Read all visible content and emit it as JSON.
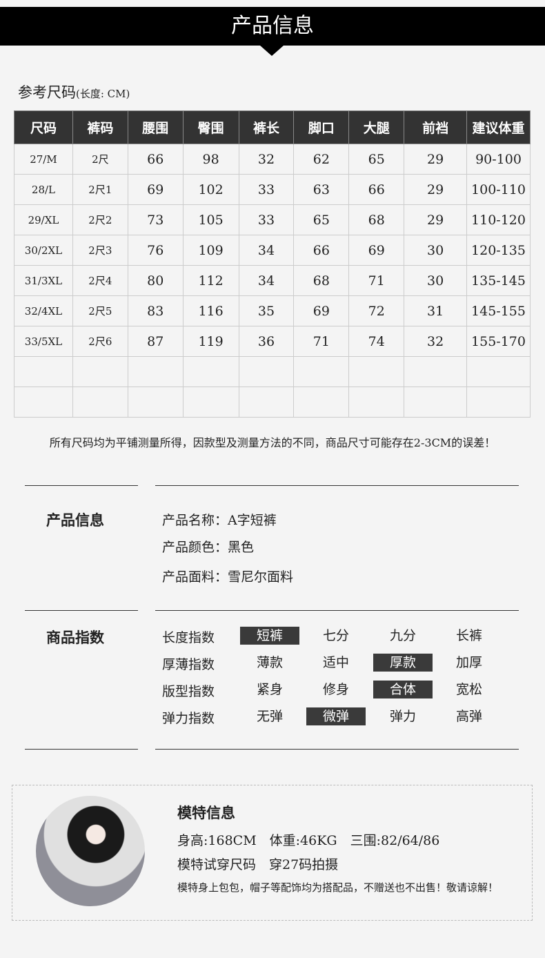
{
  "banner": {
    "title": "产品信息"
  },
  "size_chart": {
    "title": "参考尺码",
    "unit": "(长度: CM)",
    "headers": [
      "尺码",
      "裤码",
      "腰围",
      "臀围",
      "裤长",
      "脚口",
      "大腿",
      "前裆",
      "建议体重"
    ],
    "rows": [
      [
        "27/M",
        "2尺",
        "66",
        "98",
        "32",
        "62",
        "65",
        "29",
        "90-100"
      ],
      [
        "28/L",
        "2尺1",
        "69",
        "102",
        "33",
        "63",
        "66",
        "29",
        "100-110"
      ],
      [
        "29/XL",
        "2尺2",
        "73",
        "105",
        "33",
        "65",
        "68",
        "29",
        "110-120"
      ],
      [
        "30/2XL",
        "2尺3",
        "76",
        "109",
        "34",
        "66",
        "69",
        "30",
        "120-135"
      ],
      [
        "31/3XL",
        "2尺4",
        "80",
        "112",
        "34",
        "68",
        "71",
        "30",
        "135-145"
      ],
      [
        "32/4XL",
        "2尺5",
        "83",
        "116",
        "35",
        "69",
        "72",
        "31",
        "145-155"
      ],
      [
        "33/5XL",
        "2尺6",
        "87",
        "119",
        "36",
        "71",
        "74",
        "32",
        "155-170"
      ],
      [
        "",
        "",
        "",
        "",
        "",
        "",
        "",
        "",
        ""
      ],
      [
        "",
        "",
        "",
        "",
        "",
        "",
        "",
        "",
        ""
      ]
    ]
  },
  "note": "所有尺码均为平铺测量所得，因款型及测量方法的不同，商品尺寸可能存在2-3CM的误差！",
  "product_info": {
    "heading": "产品信息",
    "fields": [
      "产品名称：A字短裤",
      "产品颜色：黑色",
      "产品面料：雪尼尔面料"
    ]
  },
  "indices": {
    "heading": "商品指数",
    "rows": [
      {
        "label": "长度指数",
        "options": [
          "短裤",
          "七分",
          "九分",
          "长裤"
        ],
        "selected": 0
      },
      {
        "label": "厚薄指数",
        "options": [
          "薄款",
          "适中",
          "厚款",
          "加厚"
        ],
        "selected": 2
      },
      {
        "label": "版型指数",
        "options": [
          "紧身",
          "修身",
          "合体",
          "宽松"
        ],
        "selected": 2
      },
      {
        "label": "弹力指数",
        "options": [
          "无弹",
          "微弹",
          "弹力",
          "高弹"
        ],
        "selected": 1
      }
    ]
  },
  "model": {
    "heading": "模特信息",
    "stats": "身高:168CM　体重:46KG　三围:82/64/86",
    "size": "模特试穿尺码　穿27码拍摄",
    "disclaimer": "模特身上包包，帽子等配饰均为搭配品，不赠送也不出售！敬请谅解！"
  },
  "colors": {
    "banner": "#000000",
    "highlight": "#3a3a3a",
    "table_header": "#333333"
  }
}
